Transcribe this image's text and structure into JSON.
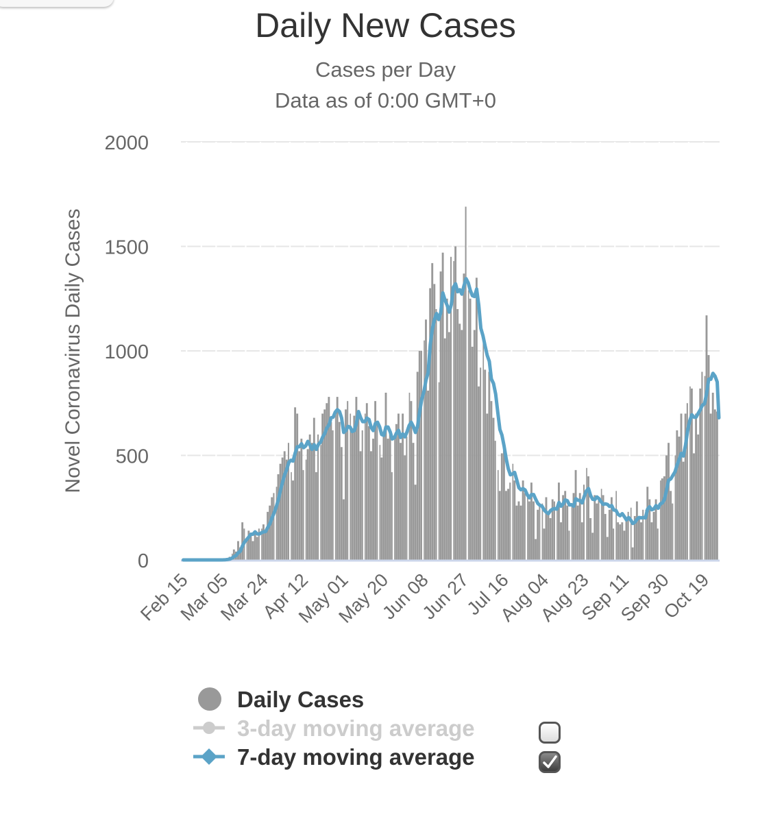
{
  "chart_data": {
    "type": "bar",
    "title": "Daily New Cases",
    "subtitle": [
      "Cases per Day",
      "Data as of 0:00 GMT+0"
    ],
    "xlabel": "",
    "ylabel": "Novel Coronavirus Daily Cases",
    "ylim": [
      0,
      2000
    ],
    "yticks": [
      0,
      500,
      1000,
      1500,
      2000
    ],
    "grid": true,
    "start_date": "Feb 15",
    "xtick_labels": [
      "Feb 15",
      "Mar 05",
      "Mar 24",
      "Apr 12",
      "May 01",
      "May 20",
      "Jun 08",
      "Jun 27",
      "Jul 16",
      "Aug 04",
      "Aug 23",
      "Sep 11",
      "Sep 30",
      "Oct 19"
    ],
    "xtick_interval_days": 19,
    "series": [
      {
        "name": "Daily Cases",
        "type": "bar",
        "color": "#999999",
        "values": [
          0,
          0,
          0,
          0,
          0,
          0,
          0,
          0,
          0,
          0,
          0,
          0,
          0,
          0,
          0,
          0,
          0,
          0,
          0,
          2,
          5,
          8,
          15,
          30,
          50,
          40,
          90,
          60,
          180,
          150,
          110,
          140,
          130,
          90,
          140,
          110,
          150,
          150,
          170,
          140,
          230,
          260,
          300,
          320,
          350,
          410,
          460,
          490,
          520,
          480,
          560,
          420,
          380,
          730,
          700,
          520,
          580,
          430,
          480,
          530,
          600,
          560,
          680,
          420,
          600,
          550,
          700,
          720,
          750,
          780,
          660,
          620,
          720,
          780,
          660,
          540,
          290,
          720,
          760,
          700,
          630,
          690,
          780,
          690,
          520,
          620,
          700,
          750,
          640,
          520,
          580,
          760,
          660,
          550,
          490,
          610,
          800,
          580,
          600,
          420,
          590,
          650,
          700,
          560,
          700,
          500,
          590,
          800,
          760,
          560,
          360,
          900,
          1000,
          1000,
          1050,
          1150,
          810,
          1300,
          1420,
          1320,
          1200,
          850,
          1380,
          1470,
          1060,
          1250,
          1090,
          1450,
          1430,
          1500,
          1200,
          1130,
          1100,
          1370,
          1690,
          1290,
          1250,
          1020,
          1100,
          1350,
          830,
          920,
          1040,
          910,
          700,
          900,
          760,
          680,
          570,
          430,
          330,
          510,
          540,
          330,
          340,
          370,
          460,
          380,
          260,
          280,
          260,
          380,
          320,
          300,
          280,
          370,
          280,
          100,
          240,
          260,
          270,
          150,
          300,
          230,
          200,
          290,
          280,
          250,
          370,
          180,
          310,
          330,
          260,
          140,
          260,
          320,
          430,
          260,
          320,
          180,
          360,
          440,
          400,
          200,
          130,
          310,
          270,
          300,
          340,
          310,
          220,
          110,
          240,
          300,
          150,
          330,
          180,
          170,
          180,
          140,
          190,
          230,
          250,
          60,
          210,
          280,
          200,
          180,
          240,
          240,
          350,
          290,
          180,
          230,
          290,
          150,
          380,
          390,
          400,
          500,
          560,
          330,
          270,
          500,
          620,
          590,
          700,
          470,
          700,
          750,
          830,
          820,
          510,
          700,
          600,
          820,
          900,
          880,
          1170,
          980,
          700,
          800,
          720,
          710
        ]
      },
      {
        "name": "3-day moving average",
        "type": "line",
        "color": "#cccccc",
        "visible": false
      },
      {
        "name": "7-day moving average",
        "type": "line",
        "color": "#5ba3c7",
        "visible": true,
        "computed_from": "Daily Cases",
        "window_days": 7
      }
    ],
    "legend_position": "bottom-center"
  },
  "legend": {
    "items": [
      {
        "label": "Daily Cases",
        "enabled": true
      },
      {
        "label": "3-day moving average",
        "enabled": false
      },
      {
        "label": "7-day moving average",
        "enabled": true
      }
    ],
    "toggle_3day_checked": false,
    "toggle_7day_checked": true
  },
  "colors": {
    "bar": "#999999",
    "line7": "#5ba3c7",
    "line3": "#cccccc",
    "grid": "#e6e6e6",
    "axis": "#ccd6eb",
    "text": "#666666",
    "title": "#333333"
  }
}
